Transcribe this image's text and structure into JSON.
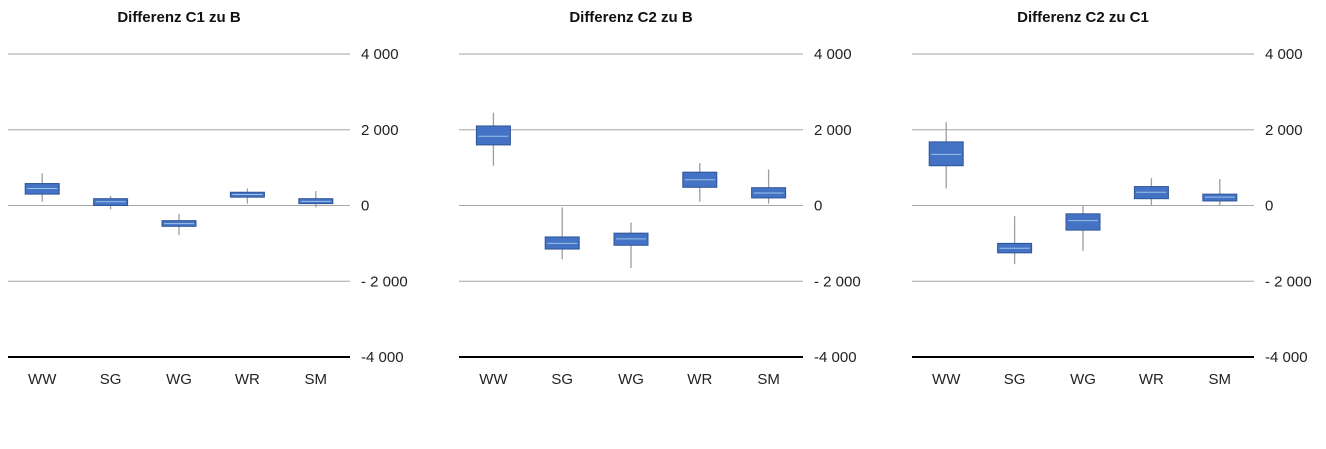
{
  "chart_data": [
    {
      "type": "box",
      "title": "Differenz C1 zu B",
      "categories": [
        "WW",
        "SG",
        "WG",
        "WR",
        "SM"
      ],
      "y_tick_labels": [
        "4 000",
        "2 000",
        "0",
        "- 2 000",
        "-4 000"
      ],
      "y_ticks": [
        4000,
        2000,
        0,
        -2000,
        -4000
      ],
      "ylim": [
        -4000,
        4000
      ],
      "yaxis_position": "right",
      "boxes": [
        {
          "min": 100,
          "q1": 300,
          "median": 450,
          "q3": 580,
          "max": 850
        },
        {
          "min": -100,
          "q1": 0,
          "median": 100,
          "q3": 180,
          "max": 250
        },
        {
          "min": -780,
          "q1": -550,
          "median": -480,
          "q3": -400,
          "max": -220
        },
        {
          "min": 50,
          "q1": 220,
          "median": 290,
          "q3": 350,
          "max": 450
        },
        {
          "min": -50,
          "q1": 50,
          "median": 110,
          "q3": 180,
          "max": 380
        }
      ]
    },
    {
      "type": "box",
      "title": "Differenz C2 zu B",
      "categories": [
        "WW",
        "SG",
        "WG",
        "WR",
        "SM"
      ],
      "y_tick_labels": [
        "4 000",
        "2 000",
        "0",
        "- 2 000",
        "-4 000"
      ],
      "y_ticks": [
        4000,
        2000,
        0,
        -2000,
        -4000
      ],
      "ylim": [
        -4000,
        4000
      ],
      "yaxis_position": "right",
      "boxes": [
        {
          "min": 1050,
          "q1": 1600,
          "median": 1830,
          "q3": 2100,
          "max": 2450
        },
        {
          "min": -1420,
          "q1": -1150,
          "median": -1000,
          "q3": -830,
          "max": -50
        },
        {
          "min": -1650,
          "q1": -1050,
          "median": -880,
          "q3": -730,
          "max": -450
        },
        {
          "min": 100,
          "q1": 480,
          "median": 680,
          "q3": 880,
          "max": 1120
        },
        {
          "min": 50,
          "q1": 200,
          "median": 330,
          "q3": 470,
          "max": 950
        }
      ]
    },
    {
      "type": "box",
      "title": "Differenz C2 zu C1",
      "categories": [
        "WW",
        "SG",
        "WG",
        "WR",
        "SM"
      ],
      "y_tick_labels": [
        "4 000",
        "2 000",
        "0",
        "- 2 000",
        "-4 000"
      ],
      "y_ticks": [
        4000,
        2000,
        0,
        -2000,
        -4000
      ],
      "ylim": [
        -4000,
        4000
      ],
      "yaxis_position": "right",
      "boxes": [
        {
          "min": 450,
          "q1": 1050,
          "median": 1350,
          "q3": 1680,
          "max": 2200
        },
        {
          "min": -1550,
          "q1": -1250,
          "median": -1130,
          "q3": -1000,
          "max": -280
        },
        {
          "min": -1200,
          "q1": -650,
          "median": -400,
          "q3": -220,
          "max": 0
        },
        {
          "min": 0,
          "q1": 180,
          "median": 350,
          "q3": 500,
          "max": 720
        },
        {
          "min": 0,
          "q1": 120,
          "median": 220,
          "q3": 300,
          "max": 700
        }
      ]
    }
  ],
  "colors": {
    "box_fill": "#4472C4",
    "box_stroke": "#2F5597",
    "median_line": "#9DC3E6",
    "whisker": "#9E9E9E",
    "gridline": "#A6A6A6",
    "baseline": "#000000"
  }
}
